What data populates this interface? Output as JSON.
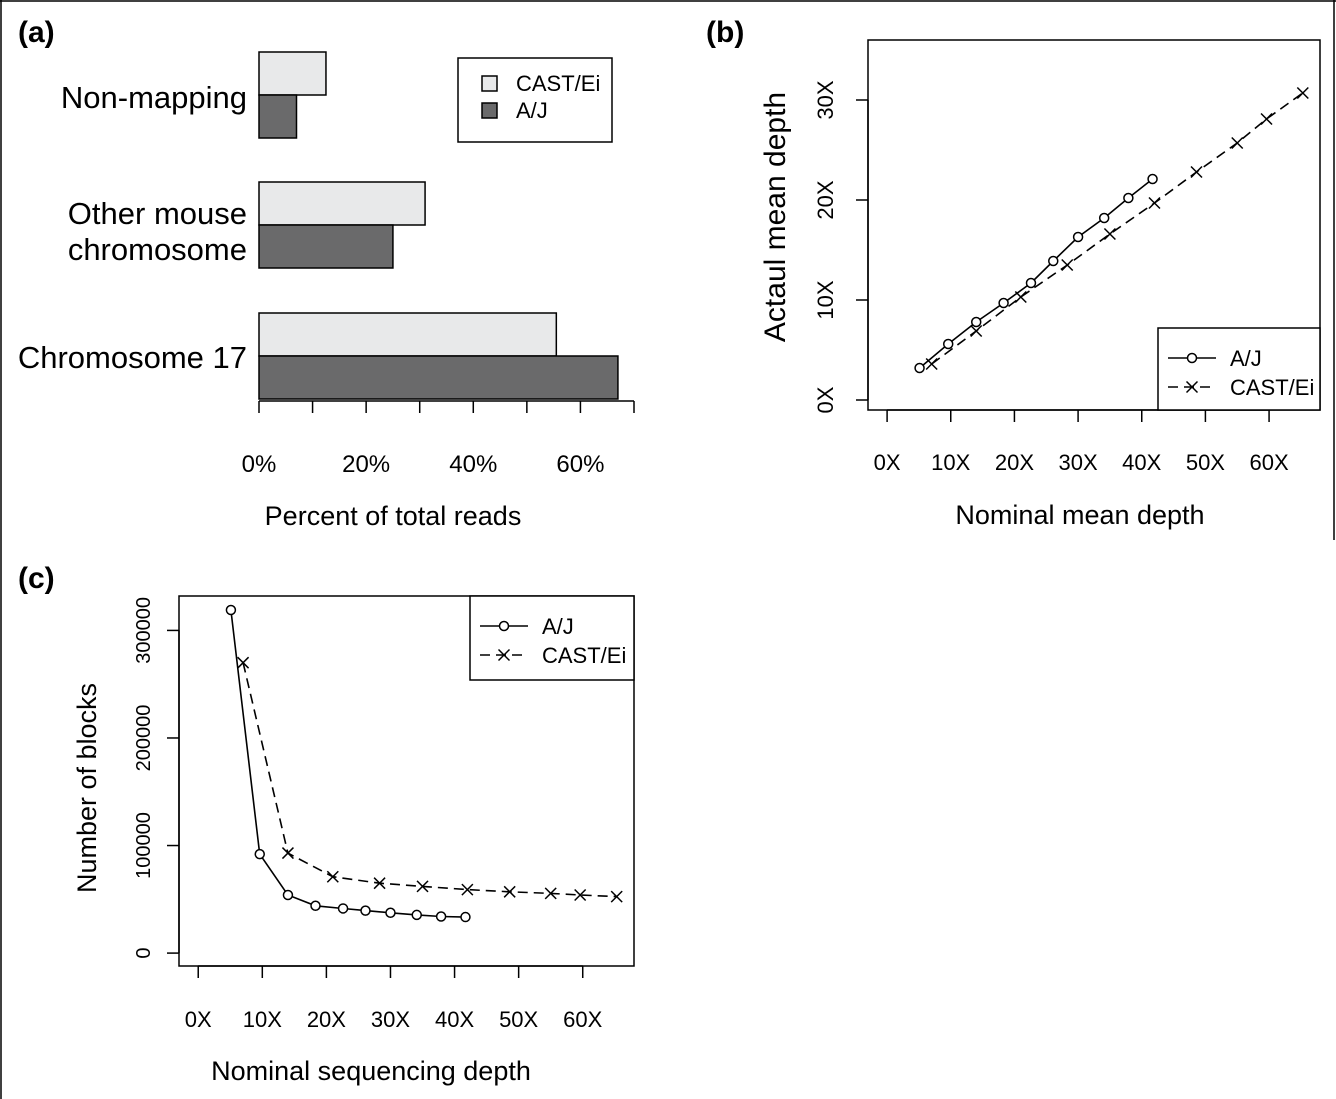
{
  "figure": {
    "panels": [
      "(a)",
      "(b)",
      "(c)"
    ]
  },
  "colors": {
    "cast_fill": "#e8e9ea",
    "aj_fill": "#6a6a6b",
    "line": "#000000"
  },
  "chart_data": [
    {
      "id": "a",
      "type": "bar",
      "orientation": "horizontal",
      "panel_label": "(a)",
      "categories": [
        "Non-mapping",
        "Other mouse chromosome",
        "Chromosome 17"
      ],
      "category_lines": [
        [
          "Non-mapping"
        ],
        [
          "Other mouse",
          "chromosome"
        ],
        [
          "Chromosome 17"
        ]
      ],
      "series": [
        {
          "name": "CAST/Ei",
          "values": [
            12.5,
            31,
            55.5
          ]
        },
        {
          "name": "A/J",
          "values": [
            7,
            25,
            67
          ]
        }
      ],
      "xlabel": "Percent of total reads",
      "xticks": [
        0,
        20,
        40,
        60
      ],
      "xtick_labels": [
        "0%",
        "20%",
        "40%",
        "60%"
      ],
      "xlim": [
        0,
        70
      ],
      "legend": {
        "position": "top-right",
        "entries": [
          "CAST/Ei",
          "A/J"
        ]
      }
    },
    {
      "id": "b",
      "type": "line",
      "panel_label": "(b)",
      "xlabel": "Nominal mean depth",
      "ylabel": "Actaul mean depth",
      "xticks": [
        0,
        10,
        20,
        30,
        40,
        50,
        60
      ],
      "xtick_labels": [
        "0X",
        "10X",
        "20X",
        "30X",
        "40X",
        "50X",
        "60X"
      ],
      "yticks": [
        0,
        10,
        20,
        30
      ],
      "ytick_labels": [
        "0X",
        "10X",
        "20X",
        "30X"
      ],
      "xlim": [
        -3,
        68
      ],
      "ylim": [
        -1,
        36
      ],
      "series": [
        {
          "name": "A/J",
          "marker": "circle",
          "linestyle": "solid",
          "x": [
            5.1,
            9.6,
            14.0,
            18.3,
            22.6,
            26.1,
            30.0,
            34.1,
            37.9,
            41.7
          ],
          "y": [
            3.2,
            5.6,
            7.8,
            9.7,
            11.7,
            13.9,
            16.3,
            18.2,
            20.2,
            22.1
          ]
        },
        {
          "name": "CAST/Ei",
          "marker": "x",
          "linestyle": "dashed",
          "x": [
            7.0,
            14.0,
            21.0,
            28.3,
            35.0,
            42.0,
            48.6,
            55.0,
            59.6,
            65.3
          ],
          "y": [
            3.6,
            6.9,
            10.3,
            13.5,
            16.6,
            19.7,
            22.8,
            25.7,
            28.1,
            30.7
          ]
        }
      ],
      "legend": {
        "position": "bottom-right",
        "entries": [
          "A/J",
          "CAST/Ei"
        ]
      }
    },
    {
      "id": "c",
      "type": "line",
      "panel_label": "(c)",
      "xlabel": "Nominal sequencing depth",
      "ylabel": "Number of blocks",
      "xticks": [
        0,
        10,
        20,
        30,
        40,
        50,
        60
      ],
      "xtick_labels": [
        "0X",
        "10X",
        "20X",
        "30X",
        "40X",
        "50X",
        "60X"
      ],
      "yticks": [
        0,
        100000,
        200000,
        300000
      ],
      "ytick_labels": [
        "0",
        "100000",
        "200000",
        "300000"
      ],
      "xlim": [
        -3,
        68
      ],
      "ylim": [
        -12000,
        332000
      ],
      "series": [
        {
          "name": "A/J",
          "marker": "circle",
          "linestyle": "solid",
          "x": [
            5.1,
            9.6,
            14.0,
            18.3,
            22.6,
            26.1,
            30.0,
            34.1,
            37.9,
            41.7
          ],
          "y": [
            319000,
            92000,
            54000,
            44000,
            41500,
            39500,
            37500,
            35500,
            34000,
            33500
          ]
        },
        {
          "name": "CAST/Ei",
          "marker": "x",
          "linestyle": "dashed",
          "x": [
            7.0,
            14.0,
            21.0,
            28.3,
            35.0,
            42.0,
            48.6,
            55.0,
            59.6,
            65.3
          ],
          "y": [
            270000,
            93000,
            71000,
            65000,
            62000,
            59000,
            57000,
            55500,
            54000,
            52500
          ]
        }
      ],
      "legend": {
        "position": "top-right",
        "entries": [
          "A/J",
          "CAST/Ei"
        ]
      }
    }
  ]
}
